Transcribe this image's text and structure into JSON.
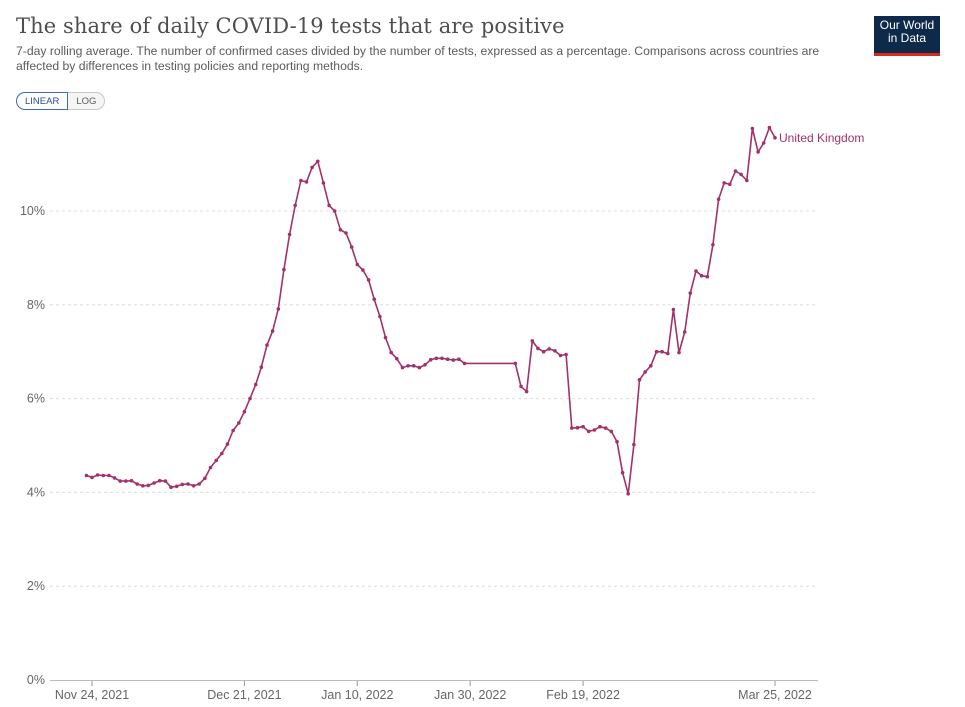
{
  "header": {
    "title": "The share of daily COVID-19 tests that are positive",
    "subtitle": "7-day rolling average. The number of confirmed cases divided by the number of tests, expressed as a percentage. Comparisons across countries are affected by differences in testing policies and reporting methods."
  },
  "logo": {
    "line1": "Our World",
    "line2": "in Data"
  },
  "scale_toggle": {
    "linear_label": "LINEAR",
    "log_label": "LOG",
    "selected": "LINEAR"
  },
  "colors": {
    "series": "#a2326a",
    "grid": "#dddddd",
    "axis": "#666666",
    "logo_bg": "#0d2a4a",
    "logo_accent": "#d42b21"
  },
  "chart_data": {
    "type": "line",
    "title": "The share of daily COVID-19 tests that are positive",
    "xlabel": "",
    "ylabel": "",
    "ylim": [
      0,
      12
    ],
    "y_ticks": [
      0,
      2,
      4,
      6,
      8,
      10
    ],
    "y_tick_labels": [
      "0%",
      "2%",
      "4%",
      "6%",
      "8%",
      "10%"
    ],
    "xlim": [
      "2021-11-23",
      "2022-03-31"
    ],
    "x_ticks": [
      "2021-11-24",
      "2021-12-21",
      "2022-01-10",
      "2022-01-30",
      "2022-02-19",
      "2022-03-25"
    ],
    "x_tick_labels": [
      "Nov 24, 2021",
      "Dec 21, 2021",
      "Jan 10, 2022",
      "Jan 30, 2022",
      "Feb 19, 2022",
      "Mar 25, 2022"
    ],
    "grid": "horizontal dashed",
    "legend": "label at line end",
    "series": [
      {
        "name": "United Kingdom",
        "color": "#a2326a",
        "points": [
          [
            "2021-11-23",
            4.36
          ],
          [
            "2021-11-24",
            4.32
          ],
          [
            "2021-11-25",
            4.37
          ],
          [
            "2021-11-26",
            4.36
          ],
          [
            "2021-11-27",
            4.36
          ],
          [
            "2021-11-28",
            4.31
          ],
          [
            "2021-11-29",
            4.24
          ],
          [
            "2021-11-30",
            4.24
          ],
          [
            "2021-12-01",
            4.25
          ],
          [
            "2021-12-02",
            4.18
          ],
          [
            "2021-12-03",
            4.14
          ],
          [
            "2021-12-04",
            4.15
          ],
          [
            "2021-12-05",
            4.2
          ],
          [
            "2021-12-06",
            4.25
          ],
          [
            "2021-12-07",
            4.24
          ],
          [
            "2021-12-08",
            4.11
          ],
          [
            "2021-12-09",
            4.13
          ],
          [
            "2021-12-10",
            4.17
          ],
          [
            "2021-12-11",
            4.18
          ],
          [
            "2021-12-12",
            4.14
          ],
          [
            "2021-12-13",
            4.18
          ],
          [
            "2021-12-14",
            4.3
          ],
          [
            "2021-12-15",
            4.53
          ],
          [
            "2021-12-16",
            4.68
          ],
          [
            "2021-12-17",
            4.83
          ],
          [
            "2021-12-18",
            5.03
          ],
          [
            "2021-12-19",
            5.32
          ],
          [
            "2021-12-20",
            5.48
          ],
          [
            "2021-12-21",
            5.72
          ],
          [
            "2021-12-22",
            6.0
          ],
          [
            "2021-12-23",
            6.3
          ],
          [
            "2021-12-24",
            6.67
          ],
          [
            "2021-12-25",
            7.14
          ],
          [
            "2021-12-26",
            7.44
          ],
          [
            "2021-12-27",
            7.91
          ],
          [
            "2021-12-28",
            8.75
          ],
          [
            "2021-12-29",
            9.5
          ],
          [
            "2021-12-30",
            10.12
          ],
          [
            "2021-12-31",
            10.65
          ],
          [
            "2022-01-01",
            10.62
          ],
          [
            "2022-01-02",
            10.93
          ],
          [
            "2022-01-03",
            11.06
          ],
          [
            "2022-01-04",
            10.6
          ],
          [
            "2022-01-05",
            10.12
          ],
          [
            "2022-01-06",
            10.0
          ],
          [
            "2022-01-07",
            9.6
          ],
          [
            "2022-01-08",
            9.53
          ],
          [
            "2022-01-09",
            9.23
          ],
          [
            "2022-01-10",
            8.86
          ],
          [
            "2022-01-11",
            8.74
          ],
          [
            "2022-01-12",
            8.53
          ],
          [
            "2022-01-13",
            8.12
          ],
          [
            "2022-01-14",
            7.75
          ],
          [
            "2022-01-15",
            7.3
          ],
          [
            "2022-01-16",
            6.98
          ],
          [
            "2022-01-17",
            6.85
          ],
          [
            "2022-01-18",
            6.66
          ],
          [
            "2022-01-19",
            6.7
          ],
          [
            "2022-01-20",
            6.7
          ],
          [
            "2022-01-21",
            6.66
          ],
          [
            "2022-01-22",
            6.72
          ],
          [
            "2022-01-23",
            6.83
          ],
          [
            "2022-01-24",
            6.86
          ],
          [
            "2022-01-25",
            6.86
          ],
          [
            "2022-01-26",
            6.84
          ],
          [
            "2022-01-27",
            6.82
          ],
          [
            "2022-01-28",
            6.84
          ],
          [
            "2022-01-29",
            6.75
          ],
          [
            "2022-02-07",
            6.75
          ],
          [
            "2022-02-08",
            6.26
          ],
          [
            "2022-02-09",
            6.15
          ],
          [
            "2022-02-10",
            7.23
          ],
          [
            "2022-02-11",
            7.07
          ],
          [
            "2022-02-12",
            7.0
          ],
          [
            "2022-02-13",
            7.06
          ],
          [
            "2022-02-14",
            7.02
          ],
          [
            "2022-02-15",
            6.92
          ],
          [
            "2022-02-16",
            6.94
          ],
          [
            "2022-02-17",
            5.37
          ],
          [
            "2022-02-18",
            5.38
          ],
          [
            "2022-02-19",
            5.4
          ],
          [
            "2022-02-20",
            5.3
          ],
          [
            "2022-02-21",
            5.33
          ],
          [
            "2022-02-22",
            5.4
          ],
          [
            "2022-02-23",
            5.37
          ],
          [
            "2022-02-24",
            5.3
          ],
          [
            "2022-02-25",
            5.08
          ],
          [
            "2022-02-26",
            4.42
          ],
          [
            "2022-02-27",
            3.97
          ],
          [
            "2022-02-28",
            5.02
          ],
          [
            "2022-03-01",
            6.4
          ],
          [
            "2022-03-02",
            6.57
          ],
          [
            "2022-03-03",
            6.7
          ],
          [
            "2022-03-04",
            7.0
          ],
          [
            "2022-03-05",
            7.0
          ],
          [
            "2022-03-06",
            6.96
          ],
          [
            "2022-03-07",
            7.9
          ],
          [
            "2022-03-08",
            6.98
          ],
          [
            "2022-03-09",
            7.42
          ],
          [
            "2022-03-10",
            8.25
          ],
          [
            "2022-03-11",
            8.72
          ],
          [
            "2022-03-12",
            8.62
          ],
          [
            "2022-03-13",
            8.6
          ],
          [
            "2022-03-14",
            9.28
          ],
          [
            "2022-03-15",
            10.25
          ],
          [
            "2022-03-16",
            10.6
          ],
          [
            "2022-03-17",
            10.57
          ],
          [
            "2022-03-18",
            10.85
          ],
          [
            "2022-03-19",
            10.78
          ],
          [
            "2022-03-20",
            10.65
          ],
          [
            "2022-03-21",
            11.76
          ],
          [
            "2022-03-22",
            11.26
          ],
          [
            "2022-03-23",
            11.45
          ],
          [
            "2022-03-24",
            11.78
          ],
          [
            "2022-03-25",
            11.56
          ]
        ]
      }
    ]
  }
}
